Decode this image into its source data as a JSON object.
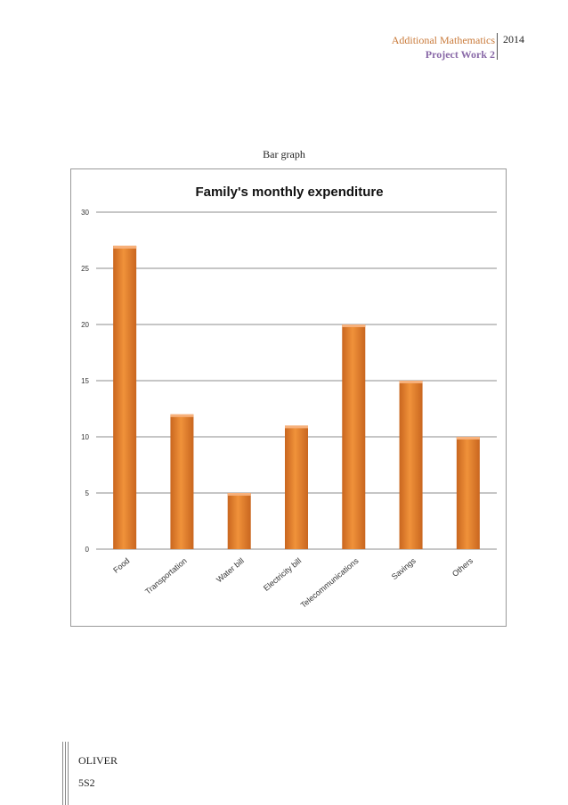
{
  "header": {
    "subject": "Additional Mathematics",
    "project": "Project Work 2",
    "year": "2014"
  },
  "caption": "Bar graph",
  "chart_data": {
    "type": "bar",
    "title": "Family's monthly expenditure",
    "xlabel": "",
    "ylabel": "",
    "categories": [
      "Food",
      "Transportation",
      "Water bill",
      "Electricity bill",
      "Telecommunications",
      "Savings",
      "Others"
    ],
    "values": [
      27,
      12,
      5,
      11,
      20,
      15,
      10
    ],
    "ylim": [
      0,
      30
    ],
    "yticks": [
      "0",
      "5",
      "10",
      "15",
      "20",
      "25",
      "30"
    ],
    "grid": true,
    "bar_color": "#e8822e"
  },
  "footer": {
    "name": "OLIVER",
    "class": "5S2"
  }
}
